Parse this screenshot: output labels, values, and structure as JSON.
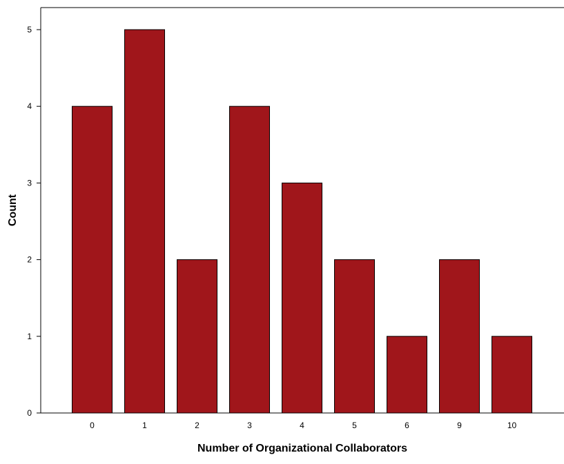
{
  "chart_data": {
    "type": "bar",
    "categories": [
      "0",
      "1",
      "2",
      "3",
      "4",
      "5",
      "6",
      "9",
      "10"
    ],
    "values": [
      4,
      5,
      2,
      4,
      3,
      2,
      1,
      2,
      1
    ],
    "title": "",
    "xlabel": "Number of Organizational Collaborators",
    "ylabel": "Count",
    "ylim": [
      0,
      5
    ],
    "yticks": [
      "0",
      "1",
      "2",
      "3",
      "4",
      "5"
    ],
    "grid": false,
    "bar_color": "#a0161b",
    "bar_edge_color": "#000000",
    "frame_color": "#808080"
  }
}
